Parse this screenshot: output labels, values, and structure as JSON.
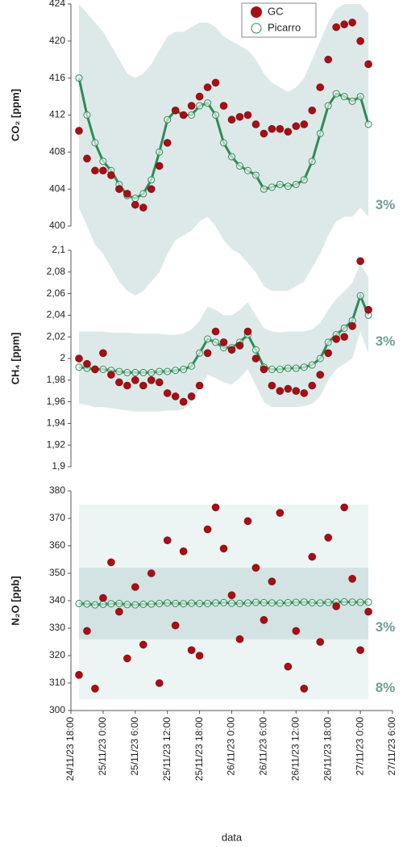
{
  "chart_data": [
    {
      "type": "scatter",
      "ylabel": "CO₂ [ppm]",
      "legend": "upper center",
      "xlim": [
        "24/11/23 18:00",
        "27/11/23 06:00"
      ],
      "ylim": [
        400,
        424
      ],
      "yticks": [
        400,
        404,
        408,
        412,
        416,
        420,
        424
      ],
      "x": [
        "24/11/23 19:30",
        "24/11/23 21:00",
        "24/11/23 22:30",
        "25/11/23 00:00",
        "25/11/23 01:30",
        "25/11/23 03:00",
        "25/11/23 04:30",
        "25/11/23 06:00",
        "25/11/23 07:30",
        "25/11/23 09:00",
        "25/11/23 10:30",
        "25/11/23 12:00",
        "25/11/23 13:30",
        "25/11/23 15:00",
        "25/11/23 16:30",
        "25/11/23 18:00",
        "25/11/23 19:30",
        "25/11/23 21:00",
        "25/11/23 22:30",
        "26/11/23 00:00",
        "26/11/23 01:30",
        "26/11/23 03:00",
        "26/11/23 04:30",
        "26/11/23 06:00",
        "26/11/23 07:30",
        "26/11/23 09:00",
        "26/11/23 10:30",
        "26/11/23 12:00",
        "26/11/23 13:30",
        "26/11/23 15:00",
        "26/11/23 16:30",
        "26/11/23 18:00",
        "26/11/23 19:30",
        "26/11/23 21:00",
        "26/11/23 22:30",
        "27/11/23 00:00",
        "27/11/23 01:30"
      ],
      "bands": [
        {
          "label": "3%",
          "color": "#dde9e9",
          "upper": [
            424,
            423,
            422,
            421,
            419.5,
            418,
            416.5,
            416,
            416.5,
            417.5,
            419,
            420.5,
            421,
            421,
            421.5,
            422,
            422,
            421.5,
            420.5,
            420,
            419.5,
            419,
            418,
            416.5,
            415.5,
            415,
            414.5,
            415,
            416,
            418,
            420,
            422,
            423.5,
            424,
            424,
            424,
            423
          ],
          "lower": [
            402,
            400,
            398,
            397,
            395.5,
            394,
            393,
            392.5,
            393,
            394,
            395,
            397,
            398.5,
            399,
            399.5,
            400.5,
            401,
            400,
            398.5,
            397.5,
            397,
            396,
            395,
            393.5,
            393,
            393,
            393,
            393.5,
            394,
            395.5,
            397,
            399,
            400.5,
            401,
            401,
            402,
            401
          ]
        }
      ],
      "series": [
        {
          "name": "GC",
          "color": "#a50f15",
          "values": [
            410.3,
            407.3,
            406,
            406,
            405.5,
            404,
            403.5,
            402.3,
            402,
            404,
            406.5,
            409,
            412.5,
            412,
            413,
            414,
            415,
            415.5,
            413,
            411.5,
            411.8,
            412,
            411,
            410,
            410.5,
            410.5,
            410.2,
            410.8,
            411,
            412.5,
            415,
            418,
            421.5,
            421.8,
            422,
            420,
            417.5
          ]
        },
        {
          "name": "Picarro",
          "color": "#2e8b57",
          "values": [
            416,
            412,
            409,
            407,
            406,
            404.5,
            403.3,
            403,
            403.5,
            405,
            408,
            411.5,
            412.5,
            412,
            412,
            413,
            413.3,
            412,
            409,
            407.5,
            406.5,
            406,
            405.5,
            404,
            404.2,
            404.5,
            404.3,
            404.5,
            405,
            407,
            410,
            413,
            414.3,
            414,
            413.5,
            414,
            411
          ]
        }
      ]
    },
    {
      "type": "scatter",
      "ylabel": "CH₄ [ppm]",
      "xlim": [
        "24/11/23 18:00",
        "27/11/23 06:00"
      ],
      "ylim": [
        1.9,
        2.1
      ],
      "yticks": [
        {
          "value": 1.9,
          "label": "1,9"
        },
        {
          "value": 1.92,
          "label": "1,92"
        },
        {
          "value": 1.94,
          "label": "1,94"
        },
        {
          "value": 1.96,
          "label": "1,96"
        },
        {
          "value": 1.98,
          "label": "1,98"
        },
        2,
        {
          "value": 2.02,
          "label": "2,02"
        },
        {
          "value": 2.04,
          "label": "2,04"
        },
        {
          "value": 2.06,
          "label": "2,06"
        },
        {
          "value": 2.08,
          "label": "2,08"
        },
        {
          "value": 2.1,
          "label": "2,1"
        }
      ],
      "x": [
        "24/11/23 19:30",
        "24/11/23 21:00",
        "24/11/23 22:30",
        "25/11/23 00:00",
        "25/11/23 01:30",
        "25/11/23 03:00",
        "25/11/23 04:30",
        "25/11/23 06:00",
        "25/11/23 07:30",
        "25/11/23 09:00",
        "25/11/23 10:30",
        "25/11/23 12:00",
        "25/11/23 13:30",
        "25/11/23 15:00",
        "25/11/23 16:30",
        "25/11/23 18:00",
        "25/11/23 19:30",
        "25/11/23 21:00",
        "25/11/23 22:30",
        "26/11/23 00:00",
        "26/11/23 01:30",
        "26/11/23 03:00",
        "26/11/23 04:30",
        "26/11/23 06:00",
        "26/11/23 07:30",
        "26/11/23 09:00",
        "26/11/23 10:30",
        "26/11/23 12:00",
        "26/11/23 13:30",
        "26/11/23 15:00",
        "26/11/23 16:30",
        "26/11/23 18:00",
        "26/11/23 19:30",
        "26/11/23 21:00",
        "26/11/23 22:30",
        "27/11/23 00:00",
        "27/11/23 01:30"
      ],
      "bands": [
        {
          "label": "3%",
          "color": "#dde9e9",
          "upper": [
            2.025,
            2.025,
            2.025,
            2.025,
            2.024,
            2.024,
            2.024,
            2.023,
            2.023,
            2.023,
            2.023,
            2.022,
            2.022,
            2.023,
            2.027,
            2.035,
            2.048,
            2.045,
            2.04,
            2.04,
            2.045,
            2.052,
            2.04,
            2.028,
            2.025,
            2.024,
            2.025,
            2.025,
            2.025,
            2.027,
            2.033,
            2.045,
            2.055,
            2.062,
            2.07,
            2.088,
            2.075
          ],
          "lower": [
            1.958,
            1.957,
            1.955,
            1.955,
            1.954,
            1.953,
            1.952,
            1.951,
            1.951,
            1.951,
            1.951,
            1.952,
            1.952,
            1.953,
            1.96,
            1.972,
            1.985,
            1.982,
            1.978,
            1.976,
            1.982,
            1.99,
            1.975,
            1.96,
            1.955,
            1.955,
            1.955,
            1.955,
            1.956,
            1.958,
            1.965,
            1.98,
            1.99,
            1.995,
            2.0,
            2.025,
            2.005
          ]
        }
      ],
      "series": [
        {
          "name": "GC",
          "color": "#a50f15",
          "values": [
            2.0,
            1.995,
            1.99,
            2.005,
            1.985,
            1.978,
            1.975,
            1.98,
            1.975,
            1.98,
            1.978,
            1.968,
            1.965,
            1.96,
            1.965,
            1.975,
            2.005,
            2.025,
            2.015,
            2.008,
            2.012,
            2.025,
            2.0,
            1.99,
            1.975,
            1.97,
            1.972,
            1.97,
            1.968,
            1.975,
            1.985,
            2.005,
            2.018,
            2.02,
            2.03,
            2.09,
            2.045
          ]
        },
        {
          "name": "Picarro",
          "color": "#2e8b57",
          "values": [
            1.992,
            1.991,
            1.99,
            1.99,
            1.989,
            1.988,
            1.987,
            1.987,
            1.987,
            1.987,
            1.988,
            1.988,
            1.989,
            1.99,
            1.993,
            2.005,
            2.018,
            2.015,
            2.01,
            2.01,
            2.015,
            2.022,
            2.008,
            1.992,
            1.99,
            1.99,
            1.991,
            1.991,
            1.992,
            1.994,
            2.0,
            2.015,
            2.022,
            2.028,
            2.035,
            2.058,
            2.04
          ]
        }
      ]
    },
    {
      "type": "scatter",
      "ylabel": "N₂O [ppb]",
      "xlabel": "data",
      "xlim": [
        "24/11/23 18:00",
        "27/11/23 06:00"
      ],
      "xticks": [
        "24/11/23 18:00",
        "25/11/23 0:00",
        "25/11/23 6:00",
        "25/11/23 12:00",
        "25/11/23 18:00",
        "26/11/23 0:00",
        "26/11/23 6:00",
        "26/11/23 12:00",
        "26/11/23 18:00",
        "27/11/23 0:00",
        "27/11/23 6:00"
      ],
      "ylim": [
        300,
        380
      ],
      "yticks": [
        300,
        310,
        320,
        330,
        340,
        350,
        360,
        370,
        380
      ],
      "x": [
        "24/11/23 19:30",
        "24/11/23 21:00",
        "24/11/23 22:30",
        "25/11/23 00:00",
        "25/11/23 01:30",
        "25/11/23 03:00",
        "25/11/23 04:30",
        "25/11/23 06:00",
        "25/11/23 07:30",
        "25/11/23 09:00",
        "25/11/23 10:30",
        "25/11/23 12:00",
        "25/11/23 13:30",
        "25/11/23 15:00",
        "25/11/23 16:30",
        "25/11/23 18:00",
        "25/11/23 19:30",
        "25/11/23 21:00",
        "25/11/23 22:30",
        "26/11/23 00:00",
        "26/11/23 01:30",
        "26/11/23 03:00",
        "26/11/23 04:30",
        "26/11/23 06:00",
        "26/11/23 07:30",
        "26/11/23 09:00",
        "26/11/23 10:30",
        "26/11/23 12:00",
        "26/11/23 13:30",
        "26/11/23 15:00",
        "26/11/23 16:30",
        "26/11/23 18:00",
        "26/11/23 19:30",
        "26/11/23 21:00",
        "26/11/23 22:30",
        "27/11/23 00:00",
        "27/11/23 01:30"
      ],
      "bands": [
        {
          "label": "8%",
          "color": "#edf4f4",
          "x": [
            "24/11/23 19:30",
            "27/11/23 01:30"
          ],
          "upper": [
            375,
            375
          ],
          "lower": [
            304,
            304
          ]
        },
        {
          "label": "3%",
          "color": "#d3e2e2",
          "x": [
            "24/11/23 19:30",
            "27/11/23 01:30"
          ],
          "upper": [
            352,
            352
          ],
          "lower": [
            326,
            326
          ]
        }
      ],
      "series": [
        {
          "name": "GC",
          "color": "#a50f15",
          "values": [
            313,
            329,
            308,
            341,
            354,
            336,
            319,
            345,
            324,
            350,
            310,
            362,
            331,
            358,
            322,
            320,
            366,
            374,
            359,
            342,
            326,
            369,
            352,
            333,
            347,
            372,
            316,
            329,
            308,
            356,
            325,
            363,
            338,
            374,
            348,
            322,
            336
          ]
        },
        {
          "name": "Picarro",
          "color": "#2e8b57",
          "values": [
            339,
            338.8,
            338.5,
            338.7,
            338.9,
            339,
            338.6,
            338.5,
            338.7,
            338.8,
            339,
            339.2,
            339,
            338.9,
            339.1,
            339,
            339,
            339.2,
            339.3,
            339.1,
            339,
            339.2,
            339.4,
            339.3,
            339.2,
            339.1,
            339.3,
            339.4,
            339.5,
            339.3,
            339.2,
            339.4,
            339.5,
            339.6,
            339.5,
            339.4,
            339.5
          ]
        }
      ]
    }
  ]
}
